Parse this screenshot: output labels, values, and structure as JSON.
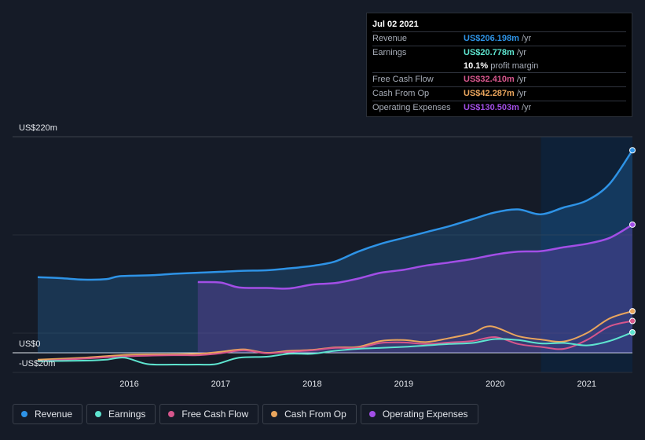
{
  "tooltip": {
    "date": "Jul 02 2021",
    "rows": [
      {
        "label": "Revenue",
        "value": "US$206.198m",
        "unit": "/yr",
        "color": "#2e93e6"
      },
      {
        "label": "Earnings",
        "value": "US$20.778m",
        "unit": "/yr",
        "color": "#5ee4cf"
      },
      {
        "label": "",
        "value": "10.1%",
        "unit": "profit margin",
        "color": "#ffffff"
      },
      {
        "label": "Free Cash Flow",
        "value": "US$32.410m",
        "unit": "/yr",
        "color": "#d6568c"
      },
      {
        "label": "Cash From Op",
        "value": "US$42.287m",
        "unit": "/yr",
        "color": "#e9a55d"
      },
      {
        "label": "Operating Expenses",
        "value": "US$130.503m",
        "unit": "/yr",
        "color": "#a24ee6"
      }
    ]
  },
  "legend": [
    {
      "label": "Revenue",
      "color": "#2e93e6"
    },
    {
      "label": "Earnings",
      "color": "#5ee4cf"
    },
    {
      "label": "Free Cash Flow",
      "color": "#d6568c"
    },
    {
      "label": "Cash From Op",
      "color": "#e9a55d"
    },
    {
      "label": "Operating Expenses",
      "color": "#a24ee6"
    }
  ],
  "chart_data": {
    "type": "area",
    "y_axis_labels": [
      "US$220m",
      "US$0",
      "-US$20m"
    ],
    "ylim": [
      -20,
      220
    ],
    "xlim": [
      2015.0,
      2021.5
    ],
    "x_tick_labels": [
      "2016",
      "2017",
      "2018",
      "2019",
      "2020",
      "2021"
    ],
    "x_tick_values": [
      2016,
      2017,
      2018,
      2019,
      2020,
      2021
    ],
    "forecast_shade_start": 2020.5,
    "series": [
      {
        "name": "Revenue",
        "color": "#2e93e6",
        "fill": true,
        "points": [
          [
            2015.0,
            77
          ],
          [
            2015.25,
            76
          ],
          [
            2015.5,
            74.5
          ],
          [
            2015.75,
            75
          ],
          [
            2015.9,
            78
          ],
          [
            2016.25,
            79
          ],
          [
            2016.5,
            80.5
          ],
          [
            2016.75,
            81.5
          ],
          [
            2017.0,
            82.5
          ],
          [
            2017.25,
            83.5
          ],
          [
            2017.5,
            84
          ],
          [
            2017.75,
            86
          ],
          [
            2018.0,
            88.5
          ],
          [
            2018.25,
            93
          ],
          [
            2018.5,
            103
          ],
          [
            2018.75,
            111
          ],
          [
            2019.0,
            117
          ],
          [
            2019.25,
            123
          ],
          [
            2019.5,
            129
          ],
          [
            2019.75,
            136
          ],
          [
            2020.0,
            143
          ],
          [
            2020.25,
            146
          ],
          [
            2020.5,
            141
          ],
          [
            2020.75,
            148
          ],
          [
            2021.0,
            155
          ],
          [
            2021.25,
            172
          ],
          [
            2021.5,
            206.2
          ]
        ]
      },
      {
        "name": "Operating Expenses",
        "color": "#a24ee6",
        "fill": true,
        "points": [
          [
            2016.75,
            72
          ],
          [
            2017.0,
            71.5
          ],
          [
            2017.2,
            66.5
          ],
          [
            2017.5,
            66
          ],
          [
            2017.75,
            65.5
          ],
          [
            2018.0,
            69.5
          ],
          [
            2018.25,
            71
          ],
          [
            2018.5,
            75.5
          ],
          [
            2018.75,
            81.5
          ],
          [
            2019.0,
            84.5
          ],
          [
            2019.25,
            89
          ],
          [
            2019.5,
            92
          ],
          [
            2019.75,
            95.5
          ],
          [
            2020.0,
            100
          ],
          [
            2020.25,
            103
          ],
          [
            2020.5,
            103.5
          ],
          [
            2020.75,
            107.5
          ],
          [
            2021.0,
            111
          ],
          [
            2021.25,
            117
          ],
          [
            2021.5,
            130.5
          ]
        ]
      },
      {
        "name": "Cash From Op",
        "color": "#e9a55d",
        "fill": false,
        "points": [
          [
            2015.0,
            -7
          ],
          [
            2015.5,
            -5
          ],
          [
            2016.0,
            -2
          ],
          [
            2016.5,
            -1.5
          ],
          [
            2016.75,
            -1
          ],
          [
            2017.0,
            1
          ],
          [
            2017.25,
            3.5
          ],
          [
            2017.5,
            0
          ],
          [
            2017.75,
            2
          ],
          [
            2018.0,
            3
          ],
          [
            2018.25,
            5.5
          ],
          [
            2018.5,
            6
          ],
          [
            2018.75,
            12
          ],
          [
            2019.0,
            13
          ],
          [
            2019.25,
            11
          ],
          [
            2019.5,
            15
          ],
          [
            2019.75,
            20
          ],
          [
            2019.95,
            27
          ],
          [
            2020.25,
            17
          ],
          [
            2020.5,
            13.5
          ],
          [
            2020.75,
            11.5
          ],
          [
            2021.0,
            20
          ],
          [
            2021.25,
            35
          ],
          [
            2021.5,
            42.3
          ]
        ]
      },
      {
        "name": "Free Cash Flow",
        "color": "#d6568c",
        "fill": false,
        "points": [
          [
            2015.0,
            -8.5
          ],
          [
            2015.5,
            -6
          ],
          [
            2016.0,
            -3.5
          ],
          [
            2016.5,
            -2.5
          ],
          [
            2016.75,
            -2.5
          ],
          [
            2017.0,
            -0.5
          ],
          [
            2017.25,
            2.5
          ],
          [
            2017.5,
            -0.5
          ],
          [
            2017.75,
            1
          ],
          [
            2018.0,
            2.5
          ],
          [
            2018.25,
            5
          ],
          [
            2018.5,
            5
          ],
          [
            2018.75,
            10
          ],
          [
            2019.0,
            10.5
          ],
          [
            2019.25,
            9
          ],
          [
            2019.5,
            10.5
          ],
          [
            2019.75,
            12
          ],
          [
            2020.0,
            16
          ],
          [
            2020.25,
            9
          ],
          [
            2020.5,
            6
          ],
          [
            2020.75,
            4
          ],
          [
            2021.0,
            13
          ],
          [
            2021.25,
            27
          ],
          [
            2021.5,
            32.4
          ]
        ]
      },
      {
        "name": "Earnings",
        "color": "#5ee4cf",
        "fill": false,
        "points": [
          [
            2015.0,
            -8.5
          ],
          [
            2015.5,
            -8
          ],
          [
            2015.75,
            -7
          ],
          [
            2015.95,
            -5
          ],
          [
            2016.2,
            -11.5
          ],
          [
            2016.5,
            -12
          ],
          [
            2016.75,
            -12
          ],
          [
            2016.95,
            -11.5
          ],
          [
            2017.2,
            -5
          ],
          [
            2017.5,
            -4
          ],
          [
            2017.75,
            -1
          ],
          [
            2018.0,
            -1
          ],
          [
            2018.25,
            2
          ],
          [
            2018.5,
            4
          ],
          [
            2018.75,
            5
          ],
          [
            2019.0,
            6
          ],
          [
            2019.25,
            7.5
          ],
          [
            2019.5,
            9
          ],
          [
            2019.75,
            10
          ],
          [
            2020.0,
            14
          ],
          [
            2020.25,
            13
          ],
          [
            2020.5,
            9.5
          ],
          [
            2020.75,
            10
          ],
          [
            2021.0,
            7.5
          ],
          [
            2021.25,
            12
          ],
          [
            2021.5,
            20.8
          ]
        ]
      }
    ]
  }
}
